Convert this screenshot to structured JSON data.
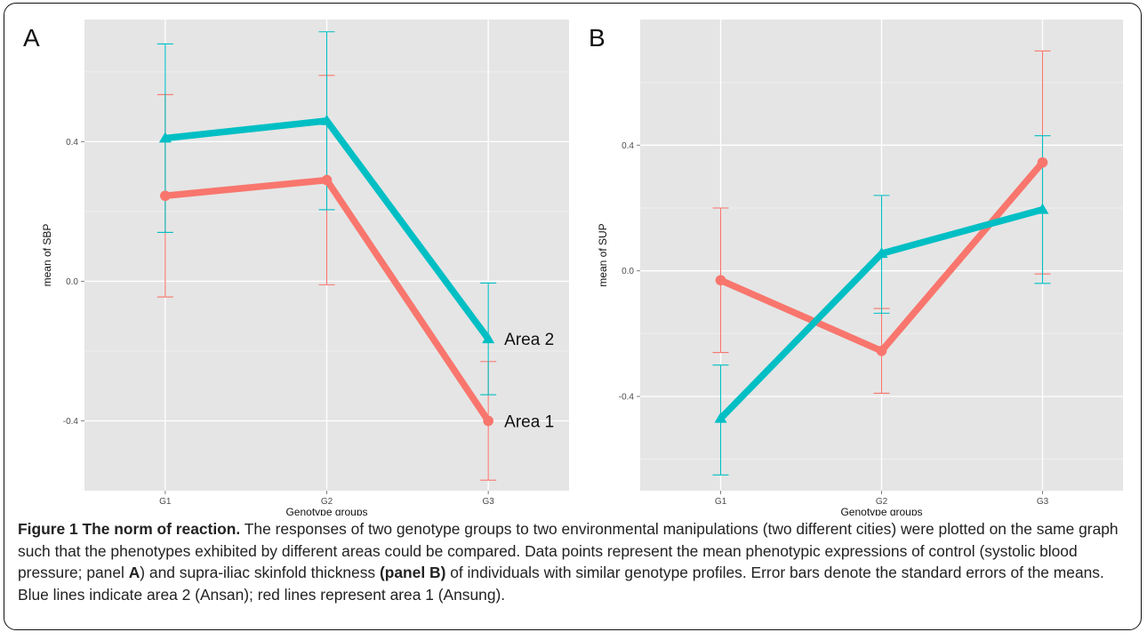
{
  "chart_data": [
    {
      "type": "line",
      "panel_label": "A",
      "xlabel": "Genotype groups",
      "ylabel": "mean of SBP",
      "categories": [
        "G1",
        "G2",
        "G3"
      ],
      "ylim": [
        -0.6,
        0.75
      ],
      "yticks": [
        -0.4,
        0.0,
        0.4
      ],
      "ytick_labels": [
        "-0.4",
        "0.0",
        "0.4"
      ],
      "grid": true,
      "series": [
        {
          "name": "Area 1",
          "color": "#F8766D",
          "marker": "circle",
          "values": [
            0.245,
            0.29,
            -0.4
          ],
          "err_low": [
            -0.045,
            -0.01,
            -0.57
          ],
          "err_high": [
            0.535,
            0.59,
            -0.23
          ]
        },
        {
          "name": "Area 2",
          "color": "#00BFC4",
          "marker": "triangle",
          "values": [
            0.41,
            0.46,
            -0.165
          ],
          "err_low": [
            0.14,
            0.205,
            -0.325
          ],
          "err_high": [
            0.68,
            0.715,
            -0.005
          ]
        }
      ],
      "annotations": [
        {
          "text": "Area 2",
          "series": 1,
          "category": 2
        },
        {
          "text": "Area 1",
          "series": 0,
          "category": 2
        }
      ]
    },
    {
      "type": "line",
      "panel_label": "B",
      "xlabel": "Genotype groups",
      "ylabel": "mean of SUP",
      "categories": [
        "G1",
        "G2",
        "G3"
      ],
      "ylim": [
        -0.7,
        0.8
      ],
      "yticks": [
        -0.4,
        0.0,
        0.4
      ],
      "ytick_labels": [
        "-0.4",
        "0.0",
        "0.4"
      ],
      "grid": true,
      "series": [
        {
          "name": "Area 1",
          "color": "#F8766D",
          "marker": "circle",
          "values": [
            -0.03,
            -0.255,
            0.345
          ],
          "err_low": [
            -0.26,
            -0.39,
            -0.01
          ],
          "err_high": [
            0.2,
            -0.12,
            0.7
          ]
        },
        {
          "name": "Area 2",
          "color": "#00BFC4",
          "marker": "triangle",
          "values": [
            -0.47,
            0.055,
            0.195
          ],
          "err_low": [
            -0.65,
            -0.135,
            -0.04
          ],
          "err_high": [
            -0.3,
            0.24,
            0.43
          ]
        }
      ]
    }
  ],
  "caption": {
    "title": "Figure 1 The norm of reaction.",
    "seg1": " The responses of two genotype groups to two environmental manipulations (two different cities) were plotted on the same graph such that the phenotypes exhibited by different areas could be compared. Data points represent the mean phenotypic expressions of control (systolic blood pressure; panel ",
    "panel_a": "A",
    "seg2": ") and supra-iliac skinfold thickness ",
    "panel_b": "(panel B)",
    "seg3": " of individuals with similar genotype profiles. Error bars denote the standard errors of the means. Blue lines indicate area 2 (Ansan); red lines represent area 1 (Ansung)."
  }
}
